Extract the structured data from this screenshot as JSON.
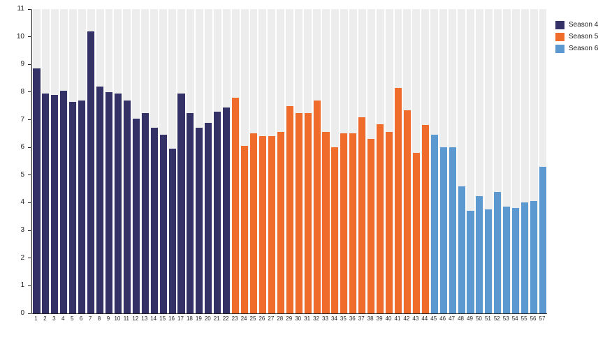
{
  "chart_data": {
    "type": "bar",
    "title": "",
    "xlabel": "",
    "ylabel": "",
    "ylim": [
      0,
      11
    ],
    "y_ticks": [
      0,
      1,
      2,
      3,
      4,
      5,
      6,
      7,
      8,
      9,
      10,
      11
    ],
    "categories": [
      "1",
      "2",
      "3",
      "4",
      "5",
      "6",
      "7",
      "8",
      "9",
      "10",
      "11",
      "12",
      "13",
      "14",
      "15",
      "16",
      "17",
      "18",
      "19",
      "20",
      "21",
      "22",
      "23",
      "24",
      "25",
      "26",
      "27",
      "28",
      "29",
      "30",
      "31",
      "32",
      "33",
      "34",
      "35",
      "36",
      "37",
      "38",
      "39",
      "40",
      "41",
      "42",
      "43",
      "44",
      "45",
      "46",
      "47",
      "48",
      "49",
      "50",
      "51",
      "52",
      "53",
      "54",
      "55",
      "56",
      "57"
    ],
    "series": [
      {
        "name": "Season 4",
        "color": "#333166",
        "first_category": "1",
        "values": [
          8.85,
          7.95,
          7.9,
          8.05,
          7.65,
          7.7,
          10.2,
          8.2,
          8.0,
          7.95,
          7.7,
          7.05,
          7.25,
          6.7,
          6.45,
          5.95,
          7.95,
          7.25,
          6.7,
          6.9,
          7.3,
          7.45
        ]
      },
      {
        "name": "Season 5",
        "color": "#F06C2B",
        "first_category": "23",
        "values": [
          7.8,
          6.05,
          6.5,
          6.4,
          6.4,
          6.55,
          7.5,
          7.25,
          7.25,
          7.7,
          6.55,
          6.0,
          6.5,
          6.5,
          7.1,
          6.3,
          6.85,
          6.55,
          8.15,
          7.35,
          5.8,
          6.8
        ]
      },
      {
        "name": "Season 6",
        "color": "#5C99D1",
        "first_category": "45",
        "values": [
          6.45,
          6.0,
          6.0,
          4.6,
          3.7,
          4.25,
          3.75,
          4.4,
          3.85,
          3.8,
          4.0,
          4.05,
          5.3
        ]
      }
    ],
    "grid": false,
    "legend_position": "top-right",
    "plot_background": "striped-columns",
    "stripe_color": "#EDEDED"
  }
}
